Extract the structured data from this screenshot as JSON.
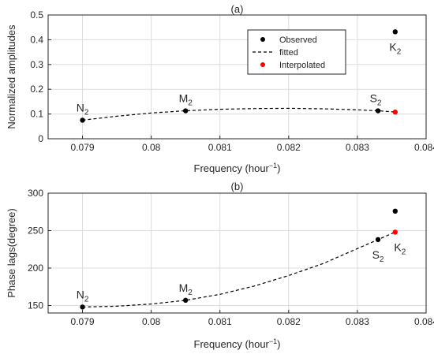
{
  "chart_data": [
    {
      "type": "scatter",
      "title": "(a)",
      "xlabel": "Frequency (hour⁻¹)",
      "ylabel": "Normalized amplitudes",
      "xlim": [
        0.0785,
        0.084
      ],
      "ylim": [
        0,
        0.5
      ],
      "xticks": [
        0.079,
        0.08,
        0.081,
        0.082,
        0.083,
        0.084
      ],
      "yticks": [
        0,
        0.1,
        0.2,
        0.3,
        0.4,
        0.5
      ],
      "xtick_labels": [
        "0.079",
        "0.08",
        "0.081",
        "0.082",
        "0.083",
        "0.084"
      ],
      "ytick_labels": [
        "0",
        "0.1",
        "0.2",
        "0.3",
        "0.4",
        "0.5"
      ],
      "grid": true,
      "legend_position": "top-right",
      "series": [
        {
          "name": "Observed",
          "kind": "points",
          "color": "#000000",
          "points": [
            {
              "x": 0.079,
              "y": 0.075,
              "label": "N",
              "sub": "2",
              "label_pos": "above"
            },
            {
              "x": 0.0805,
              "y": 0.113,
              "label": "M",
              "sub": "2",
              "label_pos": "above"
            },
            {
              "x": 0.0833,
              "y": 0.113,
              "label": "S",
              "sub": "2",
              "label_pos": "above-left"
            },
            {
              "x": 0.08355,
              "y": 0.432,
              "label": "K",
              "sub": "2",
              "label_pos": "below"
            }
          ]
        },
        {
          "name": "fitted",
          "kind": "dashed-line",
          "color": "#000000",
          "x": [
            0.079,
            0.0795,
            0.08,
            0.0805,
            0.081,
            0.0815,
            0.082,
            0.0825,
            0.083,
            0.0833,
            0.08355
          ],
          "y": [
            0.075,
            0.091,
            0.104,
            0.113,
            0.119,
            0.122,
            0.123,
            0.121,
            0.117,
            0.113,
            0.108
          ]
        },
        {
          "name": "Interpolated",
          "kind": "points",
          "color": "#ff0000",
          "points": [
            {
              "x": 0.08355,
              "y": 0.108
            }
          ]
        }
      ]
    },
    {
      "type": "scatter",
      "title": "(b)",
      "xlabel": "Frequency (hour⁻¹)",
      "ylabel": "Phase lags(degree)",
      "xlim": [
        0.0785,
        0.084
      ],
      "ylim": [
        140,
        300
      ],
      "xticks": [
        0.079,
        0.08,
        0.081,
        0.082,
        0.083,
        0.084
      ],
      "yticks": [
        150,
        200,
        250,
        300
      ],
      "xtick_labels": [
        "0.079",
        "0.08",
        "0.081",
        "0.082",
        "0.083",
        "0.084"
      ],
      "ytick_labels": [
        "150",
        "200",
        "250",
        "300"
      ],
      "grid": true,
      "series": [
        {
          "name": "Observed",
          "kind": "points",
          "color": "#000000",
          "points": [
            {
              "x": 0.079,
              "y": 148,
              "label": "N",
              "sub": "2",
              "label_pos": "above"
            },
            {
              "x": 0.0805,
              "y": 157,
              "label": "M",
              "sub": "2",
              "label_pos": "above"
            },
            {
              "x": 0.0833,
              "y": 238,
              "label": "S",
              "sub": "2",
              "label_pos": "below"
            },
            {
              "x": 0.08355,
              "y": 276
            }
          ]
        },
        {
          "name": "fitted",
          "kind": "dashed-line",
          "color": "#000000",
          "x": [
            0.079,
            0.0795,
            0.08,
            0.0805,
            0.081,
            0.0815,
            0.082,
            0.0825,
            0.083,
            0.0833,
            0.08355
          ],
          "y": [
            148,
            149,
            152,
            157,
            165,
            176,
            190,
            206,
            226,
            238,
            248
          ]
        },
        {
          "name": "Interpolated",
          "kind": "points",
          "color": "#ff0000",
          "points": [
            {
              "x": 0.08355,
              "y": 248,
              "label": "K",
              "sub": "2",
              "label_pos": "below-right"
            }
          ]
        }
      ]
    }
  ]
}
